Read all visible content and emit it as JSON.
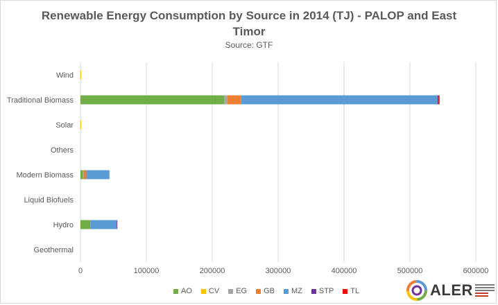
{
  "chart_data": {
    "type": "bar",
    "orientation": "horizontal",
    "stacked": true,
    "title_lines": [
      "Renewable Energy Consumption by Source in 2014 (TJ) - PALOP and East",
      "Timor"
    ],
    "subtitle": "Source: GTF",
    "categories": [
      "Wind",
      "Traditional Biomass",
      "Solar",
      "Others",
      "Modern Biomass",
      "Liquid Biofuels",
      "Hydro",
      "Geothermal"
    ],
    "series": [
      {
        "name": "AO",
        "color": "#70ad47",
        "values": [
          0,
          218000,
          0,
          0,
          4000,
          0,
          15000,
          0
        ]
      },
      {
        "name": "CV",
        "color": "#ffc000",
        "values": [
          600,
          0,
          600,
          0,
          0,
          0,
          0,
          0
        ]
      },
      {
        "name": "EG",
        "color": "#a5a5a5",
        "values": [
          0,
          5000,
          0,
          0,
          1000,
          0,
          0,
          0
        ]
      },
      {
        "name": "GB",
        "color": "#ed7d31",
        "values": [
          0,
          21000,
          0,
          0,
          4000,
          0,
          0,
          0
        ]
      },
      {
        "name": "MZ",
        "color": "#5b9bd5",
        "values": [
          0,
          298000,
          0,
          0,
          35000,
          0,
          40000,
          0
        ]
      },
      {
        "name": "STP",
        "color": "#7030a0",
        "values": [
          0,
          1500,
          0,
          0,
          0,
          0,
          1000,
          0
        ]
      },
      {
        "name": "TL",
        "color": "#ff0000",
        "values": [
          0,
          1500,
          0,
          0,
          0,
          0,
          0,
          0
        ]
      }
    ],
    "xlim": [
      0,
      600000
    ],
    "xticks": [
      0,
      100000,
      200000,
      300000,
      400000,
      500000,
      600000
    ],
    "xtick_labels": [
      "0",
      "100000",
      "200000",
      "300000",
      "400000",
      "500000",
      "600000"
    ],
    "grid": "vertical",
    "legend_position": "bottom"
  },
  "logo": {
    "text": "ALER",
    "name": "aler-logo"
  }
}
